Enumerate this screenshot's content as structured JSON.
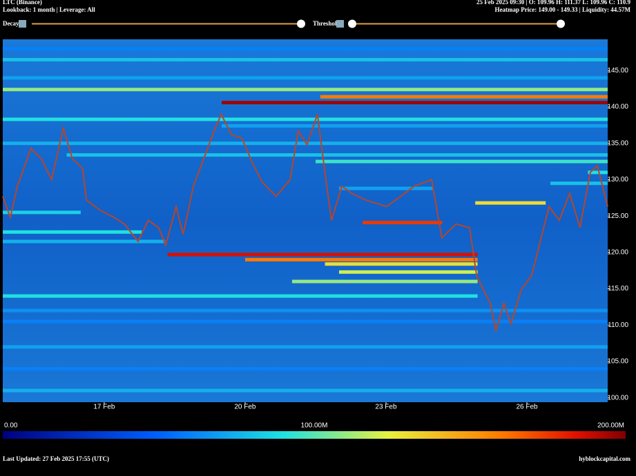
{
  "header": {
    "symbol": "LTC (Binance)",
    "settings": "Lookback: 1 month | Leverage: All",
    "ohlc": "25 Feb 2025 09:30 | O: 109.96 H: 111.37 L: 109.96 C: 110.9",
    "heatmap_info": "Heatmap Price: 149.00 - 149.33 | Liquidity: 44.57M",
    "decay_label": "Decay",
    "threshold_label": "Threshold"
  },
  "chart_data": {
    "type": "heatmap",
    "xlim": [
      14.84,
      27.72
    ],
    "xticks": [
      {
        "value": 17,
        "label": "17 Feb"
      },
      {
        "value": 20,
        "label": "20 Feb"
      },
      {
        "value": 23,
        "label": "23 Feb"
      },
      {
        "value": 26,
        "label": "26 Feb"
      }
    ],
    "ylim": [
      99.4,
      149.3
    ],
    "yticks": [
      {
        "value": 100,
        "label": "100.00"
      },
      {
        "value": 105,
        "label": "105.00"
      },
      {
        "value": 110,
        "label": "110.00"
      },
      {
        "value": 115,
        "label": "115.00"
      },
      {
        "value": 120,
        "label": "120.00"
      },
      {
        "value": 125,
        "label": "125.00"
      },
      {
        "value": 130,
        "label": "130.00"
      },
      {
        "value": 135,
        "label": "135.00"
      },
      {
        "value": 140,
        "label": "140.00"
      },
      {
        "value": 145,
        "label": "145.00"
      }
    ],
    "clim": [
      0,
      200
    ],
    "cticks": [
      {
        "value": 0,
        "label": "0.00"
      },
      {
        "value": 100,
        "label": "100.00M"
      },
      {
        "value": 200,
        "label": "200.00M"
      }
    ],
    "x": [
      14.84,
      15.0,
      15.15,
      15.44,
      15.66,
      15.88,
      16.13,
      16.32,
      16.54,
      16.62,
      16.91,
      17.21,
      17.43,
      17.72,
      17.94,
      18.16,
      18.31,
      18.53,
      18.68,
      18.9,
      19.12,
      19.34,
      19.49,
      19.71,
      19.93,
      20.15,
      20.37,
      20.66,
      20.96,
      21.13,
      21.32,
      21.54,
      21.72,
      21.84,
      22.06,
      22.28,
      22.57,
      23.01,
      23.31,
      23.6,
      23.97,
      24.19,
      24.49,
      24.78,
      24.93,
      25.07,
      25.22,
      25.34,
      25.51,
      25.66,
      25.88,
      26.1,
      26.25,
      26.47,
      26.69,
      26.91,
      27.13,
      27.35,
      27.5,
      27.72
    ],
    "series": [
      {
        "color": "#b8452a",
        "values": [
          127.7,
          124.8,
          129.1,
          134.3,
          132.9,
          130.0,
          137.1,
          132.9,
          131.5,
          127.2,
          125.8,
          124.8,
          123.9,
          121.5,
          124.4,
          123.4,
          121.0,
          126.3,
          122.5,
          129.1,
          132.9,
          136.7,
          139.0,
          136.2,
          135.7,
          132.4,
          129.6,
          127.7,
          130.0,
          136.7,
          134.8,
          139.0,
          130.0,
          124.4,
          129.1,
          128.1,
          127.2,
          126.3,
          127.7,
          129.1,
          130.0,
          122.0,
          123.9,
          123.4,
          116.8,
          114.9,
          113.0,
          109.2,
          113.0,
          110.2,
          114.9,
          116.8,
          120.6,
          126.3,
          124.4,
          128.1,
          123.4,
          131.0,
          131.9,
          126.3
        ]
      }
    ],
    "bands": [
      {
        "price": 140.6,
        "from": 19.5,
        "to": 27.72,
        "value": 195
      },
      {
        "price": 141.4,
        "from": 21.6,
        "to": 27.72,
        "value": 160
      },
      {
        "price": 142.4,
        "from": 14.84,
        "to": 27.72,
        "value": 110
      },
      {
        "price": 144.0,
        "from": 14.84,
        "to": 27.72,
        "value": 70
      },
      {
        "price": 146.5,
        "from": 14.84,
        "to": 27.72,
        "value": 80
      },
      {
        "price": 148.0,
        "from": 14.84,
        "to": 27.72,
        "value": 60
      },
      {
        "price": 138.3,
        "from": 14.84,
        "to": 27.72,
        "value": 90
      },
      {
        "price": 137.4,
        "from": 19.5,
        "to": 27.72,
        "value": 70
      },
      {
        "price": 135.0,
        "from": 14.84,
        "to": 27.72,
        "value": 75
      },
      {
        "price": 133.4,
        "from": 16.2,
        "to": 27.72,
        "value": 80
      },
      {
        "price": 132.5,
        "from": 21.5,
        "to": 27.72,
        "value": 95
      },
      {
        "price": 119.7,
        "from": 18.35,
        "to": 24.95,
        "value": 185
      },
      {
        "price": 119.0,
        "from": 20.0,
        "to": 24.95,
        "value": 160
      },
      {
        "price": 118.4,
        "from": 21.7,
        "to": 24.95,
        "value": 130
      },
      {
        "price": 117.3,
        "from": 22.0,
        "to": 24.95,
        "value": 120
      },
      {
        "price": 116.0,
        "from": 21.0,
        "to": 24.95,
        "value": 110
      },
      {
        "price": 114.0,
        "from": 14.84,
        "to": 24.95,
        "value": 90
      },
      {
        "price": 126.8,
        "from": 24.9,
        "to": 26.4,
        "value": 130
      },
      {
        "price": 124.1,
        "from": 22.5,
        "to": 24.2,
        "value": 175
      },
      {
        "price": 128.8,
        "from": 22.0,
        "to": 24.0,
        "value": 70
      },
      {
        "price": 121.5,
        "from": 14.84,
        "to": 18.3,
        "value": 75
      },
      {
        "price": 122.8,
        "from": 14.84,
        "to": 17.8,
        "value": 90
      },
      {
        "price": 110.5,
        "from": 14.84,
        "to": 27.72,
        "value": 60
      },
      {
        "price": 107.0,
        "from": 14.84,
        "to": 27.72,
        "value": 70
      },
      {
        "price": 104.0,
        "from": 14.84,
        "to": 27.72,
        "value": 60
      },
      {
        "price": 101.0,
        "from": 14.84,
        "to": 27.72,
        "value": 75
      },
      {
        "price": 112.0,
        "from": 14.84,
        "to": 27.72,
        "value": 65
      },
      {
        "price": 125.5,
        "from": 14.84,
        "to": 16.5,
        "value": 85
      },
      {
        "price": 131.0,
        "from": 27.3,
        "to": 27.72,
        "value": 90
      },
      {
        "price": 129.5,
        "from": 26.5,
        "to": 27.72,
        "value": 80
      }
    ]
  },
  "footer": {
    "updated": "Last Updated: 27 Feb 2025 17:55 (UTC)",
    "site": "hyblockcapital.com"
  }
}
